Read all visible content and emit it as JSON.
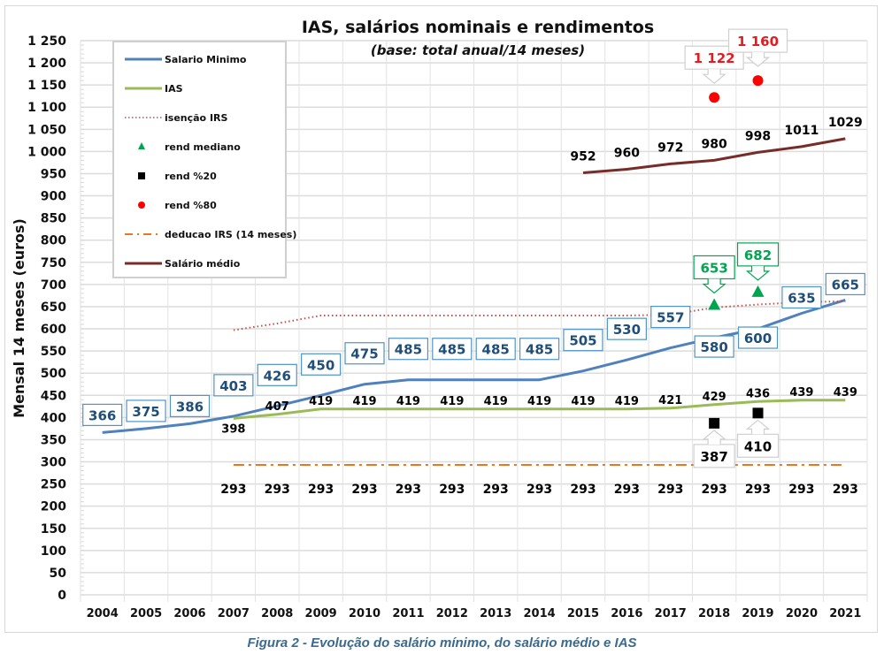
{
  "caption": "Figura 2 - Evolução do salário mínimo, do salário médio e IAS",
  "chart_data": {
    "type": "line",
    "title": "IAS, salários nominais e rendimentos",
    "subtitle": "(base: total anual/14 meses)",
    "xlabel": "",
    "ylabel": "Mensal 14 meses (euros)",
    "ylim": [
      0,
      1250
    ],
    "ytick_step": 50,
    "yticks": [
      "0",
      "50",
      "100",
      "150",
      "200",
      "250",
      "300",
      "350",
      "400",
      "450",
      "500",
      "550",
      "600",
      "650",
      "700",
      "750",
      "800",
      "850",
      "900",
      "950",
      "1 000",
      "1 050",
      "1 100",
      "1 150",
      "1 200",
      "1 250"
    ],
    "grid": true,
    "legend_position": "top-left",
    "categories": [
      "2004",
      "2005",
      "2006",
      "2007",
      "2008",
      "2009",
      "2010",
      "2011",
      "2012",
      "2013",
      "2014",
      "2015",
      "2016",
      "2017",
      "2018",
      "2019",
      "2020",
      "2021"
    ],
    "series": [
      {
        "name": "Salario Minimo",
        "kind": "line",
        "color": "#4f81bd",
        "label_color": "#1f4e79",
        "values": [
          366,
          375,
          386,
          403,
          426,
          450,
          475,
          485,
          485,
          485,
          485,
          505,
          530,
          557,
          580,
          600,
          635,
          665
        ],
        "labels": [
          "366",
          "375",
          "386",
          "403",
          "426",
          "450",
          "475",
          "485",
          "485",
          "485",
          "485",
          "505",
          "530",
          "557",
          "580",
          "600",
          "635",
          "665"
        ]
      },
      {
        "name": "IAS",
        "kind": "line",
        "color": "#9bbb59",
        "label_color": "#000000",
        "values": [
          null,
          null,
          null,
          398,
          407,
          419,
          419,
          419,
          419,
          419,
          419,
          419,
          419,
          421,
          429,
          436,
          439,
          439
        ],
        "labels": [
          null,
          null,
          null,
          "398",
          "407",
          "419",
          "419",
          "419",
          "419",
          "419",
          "419",
          "419",
          "419",
          "421",
          "429",
          "436",
          "439",
          "439"
        ]
      },
      {
        "name": "isenção IRS",
        "kind": "dotted",
        "color": "#c0504d",
        "values": [
          null,
          null,
          null,
          597,
          612,
          630,
          630,
          630,
          630,
          630,
          630,
          630,
          630,
          632,
          648,
          655,
          660,
          662
        ]
      },
      {
        "name": "rend mediano",
        "kind": "marker",
        "marker": "triangle",
        "color": "#00a550",
        "label_color": "#00a550",
        "values": [
          null,
          null,
          null,
          null,
          null,
          null,
          null,
          null,
          null,
          null,
          null,
          null,
          null,
          null,
          653,
          682,
          null,
          null
        ],
        "labels": [
          null,
          null,
          null,
          null,
          null,
          null,
          null,
          null,
          null,
          null,
          null,
          null,
          null,
          null,
          "653",
          "682",
          null,
          null
        ]
      },
      {
        "name": "rend %20",
        "kind": "marker",
        "marker": "square",
        "color": "#000000",
        "label_color": "#000000",
        "values": [
          null,
          null,
          null,
          null,
          null,
          null,
          null,
          null,
          null,
          null,
          null,
          null,
          null,
          null,
          387,
          410,
          null,
          null
        ],
        "labels": [
          null,
          null,
          null,
          null,
          null,
          null,
          null,
          null,
          null,
          null,
          null,
          null,
          null,
          null,
          "387",
          "410",
          null,
          null
        ]
      },
      {
        "name": "rend %80",
        "kind": "marker",
        "marker": "circle",
        "color": "#ff0000",
        "label_color": "#e31b23",
        "values": [
          null,
          null,
          null,
          null,
          null,
          null,
          null,
          null,
          null,
          null,
          null,
          null,
          null,
          null,
          1122,
          1160,
          null,
          null
        ],
        "labels": [
          null,
          null,
          null,
          null,
          null,
          null,
          null,
          null,
          null,
          null,
          null,
          null,
          null,
          null,
          "1 122",
          "1 160",
          null,
          null
        ]
      },
      {
        "name": "deducao IRS (14 meses)",
        "kind": "dashdot",
        "color": "#e87722",
        "label_color": "#000000",
        "values": [
          null,
          null,
          null,
          293,
          293,
          293,
          293,
          293,
          293,
          293,
          293,
          293,
          293,
          293,
          293,
          293,
          293,
          293
        ],
        "labels": [
          null,
          null,
          null,
          "293",
          "293",
          "293",
          "293",
          "293",
          "293",
          "293",
          "293",
          "293",
          "293",
          "293",
          "293",
          "293",
          "293",
          "293"
        ]
      },
      {
        "name": "Salário médio",
        "kind": "line",
        "color": "#772c2a",
        "label_color": "#000000",
        "values": [
          null,
          null,
          null,
          null,
          null,
          null,
          null,
          null,
          null,
          null,
          null,
          952,
          960,
          972,
          980,
          998,
          1011,
          1029
        ],
        "labels": [
          null,
          null,
          null,
          null,
          null,
          null,
          null,
          null,
          null,
          null,
          null,
          "952",
          "960",
          "972",
          "980",
          "998",
          "1011",
          "1029"
        ]
      }
    ]
  }
}
